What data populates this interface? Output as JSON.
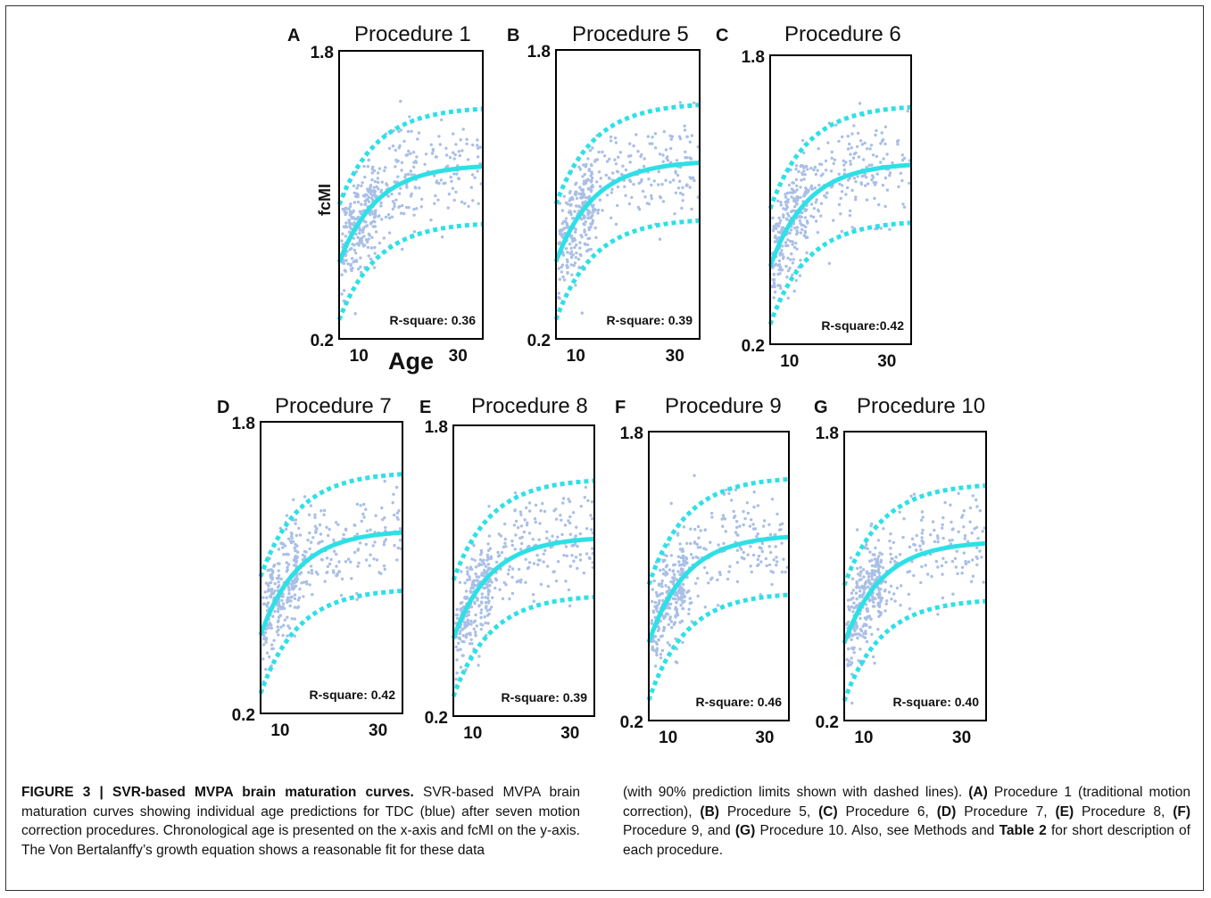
{
  "figure": {
    "axis_labels": {
      "x": "Age",
      "y": "fcMI"
    },
    "colors": {
      "points": "#a9bfe6",
      "curve": "#2ee0e6",
      "frame": "#000000"
    },
    "panels": [
      {
        "letter": "A",
        "title": "Procedure 1",
        "r_square_label": "R-square: 0.36",
        "y_ticks": [
          "1.8",
          "0.2"
        ],
        "x_ticks": [
          "10",
          "30"
        ]
      },
      {
        "letter": "B",
        "title": "Procedure 5",
        "r_square_label": "R-square: 0.39",
        "y_ticks": [
          "1.8",
          "0.2"
        ],
        "x_ticks": [
          "10",
          "30"
        ]
      },
      {
        "letter": "C",
        "title": "Procedure 6",
        "r_square_label": "R-square:0.42",
        "y_ticks": [
          "1.8",
          "0.2"
        ],
        "x_ticks": [
          "10",
          "30"
        ]
      },
      {
        "letter": "D",
        "title": "Procedure 7",
        "r_square_label": "R-square: 0.42",
        "y_ticks": [
          "1.8",
          "0.2"
        ],
        "x_ticks": [
          "10",
          "30"
        ]
      },
      {
        "letter": "E",
        "title": "Procedure 8",
        "r_square_label": "R-square: 0.39",
        "y_ticks": [
          "1.8",
          "0.2"
        ],
        "x_ticks": [
          "10",
          "30"
        ]
      },
      {
        "letter": "F",
        "title": "Procedure 9",
        "r_square_label": "R-square: 0.46",
        "y_ticks": [
          "1.8",
          "0.2"
        ],
        "x_ticks": [
          "10",
          "30"
        ]
      },
      {
        "letter": "G",
        "title": "Procedure 10",
        "r_square_label": "R-square: 0.40",
        "y_ticks": [
          "1.8",
          "0.2"
        ],
        "x_ticks": [
          "10",
          "30"
        ]
      }
    ]
  },
  "chart_data": [
    {
      "type": "scatter",
      "title": "Procedure 1",
      "ylabel": "fcMI",
      "xlabel": "Age",
      "ylim": [
        0.2,
        1.8
      ],
      "x_ticks": [
        10,
        30
      ],
      "r_square": 0.36
    },
    {
      "type": "scatter",
      "title": "Procedure 5",
      "ylim": [
        0.2,
        1.8
      ],
      "x_ticks": [
        10,
        30
      ],
      "r_square": 0.39
    },
    {
      "type": "scatter",
      "title": "Procedure 6",
      "ylim": [
        0.2,
        1.8
      ],
      "x_ticks": [
        10,
        30
      ],
      "r_square": 0.42
    },
    {
      "type": "scatter",
      "title": "Procedure 7",
      "ylim": [
        0.2,
        1.8
      ],
      "x_ticks": [
        10,
        30
      ],
      "r_square": 0.42
    },
    {
      "type": "scatter",
      "title": "Procedure 8",
      "ylim": [
        0.2,
        1.8
      ],
      "x_ticks": [
        10,
        30
      ],
      "r_square": 0.39
    },
    {
      "type": "scatter",
      "title": "Procedure 9",
      "ylim": [
        0.2,
        1.8
      ],
      "x_ticks": [
        10,
        30
      ],
      "r_square": 0.46
    },
    {
      "type": "scatter",
      "title": "Procedure 10",
      "ylim": [
        0.2,
        1.8
      ],
      "x_ticks": [
        10,
        30
      ],
      "r_square": 0.4
    }
  ],
  "caption": {
    "label": "FIGURE 3 | SVR-based MVPA brain maturation curves.",
    "left_text": " SVR-based MVPA brain maturation curves showing individual age predictions for TDC (blue) after seven motion correction procedures. Chronological age is presented on the x-axis and fcMI on the y-axis. The Von Bertalanffy’s growth equation shows a reasonable fit for these data",
    "right_parts": [
      {
        "t": "(with 90% prediction limits shown with dashed lines). ",
        "b": false
      },
      {
        "t": "(A)",
        "b": true
      },
      {
        "t": " Procedure 1 (traditional motion correction), ",
        "b": false
      },
      {
        "t": "(B)",
        "b": true
      },
      {
        "t": " Procedure 5, ",
        "b": false
      },
      {
        "t": "(C)",
        "b": true
      },
      {
        "t": " Procedure 6, ",
        "b": false
      },
      {
        "t": "(D)",
        "b": true
      },
      {
        "t": " Procedure 7, ",
        "b": false
      },
      {
        "t": "(E)",
        "b": true
      },
      {
        "t": " Procedure 8, ",
        "b": false
      },
      {
        "t": "(F)",
        "b": true
      },
      {
        "t": " Procedure 9, and ",
        "b": false
      },
      {
        "t": "(G)",
        "b": true
      },
      {
        "t": " Procedure 10. Also, see Methods and ",
        "b": false
      },
      {
        "t": "Table 2",
        "b": true
      },
      {
        "t": " for short description of each procedure.",
        "b": false
      }
    ]
  }
}
